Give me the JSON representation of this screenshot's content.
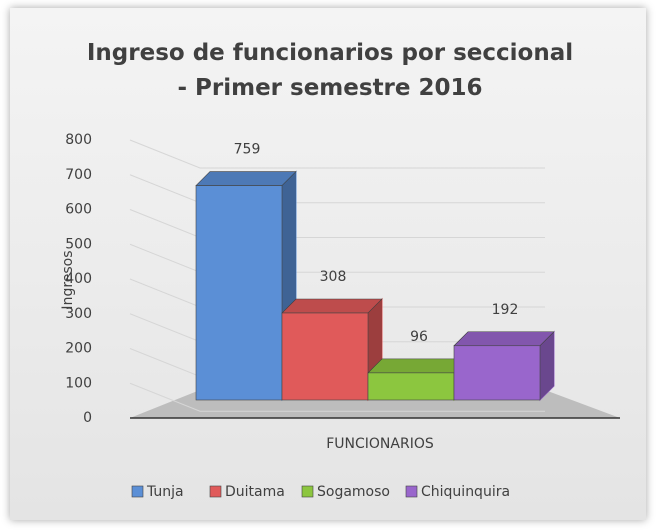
{
  "chart_data": {
    "type": "bar3d",
    "title": "Ingreso de funcionarios por seccional - Primer semestre 2016",
    "y_label": "Ingresos",
    "categories": [
      "FUNCIONARIOS"
    ],
    "series": [
      {
        "name": "Tunja",
        "color": "#5b8fd6",
        "values": [
          759
        ]
      },
      {
        "name": "Duitama",
        "color": "#e05a5a",
        "values": [
          308
        ]
      },
      {
        "name": "Sogamoso",
        "color": "#8cc63f",
        "values": [
          96
        ]
      },
      {
        "name": "Chiquinquira",
        "color": "#9966cc",
        "values": [
          192
        ]
      }
    ],
    "ylim": [
      0,
      800
    ],
    "yticks": [
      0,
      100,
      200,
      300,
      400,
      500,
      600,
      700,
      800
    ],
    "grid": true,
    "legend": "bottom"
  }
}
